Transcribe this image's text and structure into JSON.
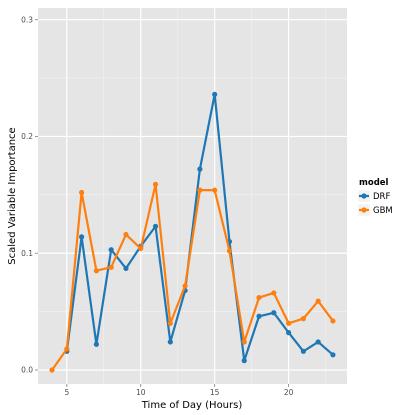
{
  "chart_data": {
    "type": "line",
    "xlabel": "Time of Day (Hours)",
    "ylabel": "Scaled Variable Importance",
    "xlim": [
      3.05,
      23.95
    ],
    "ylim": [
      -0.012,
      0.31
    ],
    "x_ticks": [
      5,
      10,
      15,
      20
    ],
    "x_tick_labels": [
      "5",
      "10",
      "15",
      "20"
    ],
    "y_ticks": [
      0.0,
      0.1,
      0.2,
      0.3
    ],
    "y_tick_labels": [
      "0.0",
      "0.1",
      "0.2",
      "0.3"
    ],
    "grid": true,
    "legend_title": "model",
    "legend_position": "right",
    "x": [
      4,
      5,
      6,
      7,
      8,
      9,
      10,
      11,
      12,
      13,
      14,
      15,
      16,
      17,
      18,
      19,
      20,
      21,
      22,
      23
    ],
    "series": [
      {
        "name": "DRF",
        "color": "#1f77b4",
        "values": [
          null,
          0.016,
          0.114,
          0.022,
          0.103,
          0.087,
          0.106,
          0.123,
          0.024,
          0.068,
          0.172,
          0.236,
          0.11,
          0.008,
          0.046,
          0.049,
          0.032,
          0.016,
          0.024,
          0.013
        ]
      },
      {
        "name": "GBM",
        "color": "#ff7f0e",
        "values": [
          0.0,
          0.018,
          0.152,
          0.085,
          0.088,
          0.116,
          0.104,
          0.159,
          0.04,
          0.072,
          0.154,
          0.154,
          0.102,
          0.024,
          0.062,
          0.066,
          0.04,
          0.044,
          0.059,
          0.042
        ]
      }
    ]
  }
}
